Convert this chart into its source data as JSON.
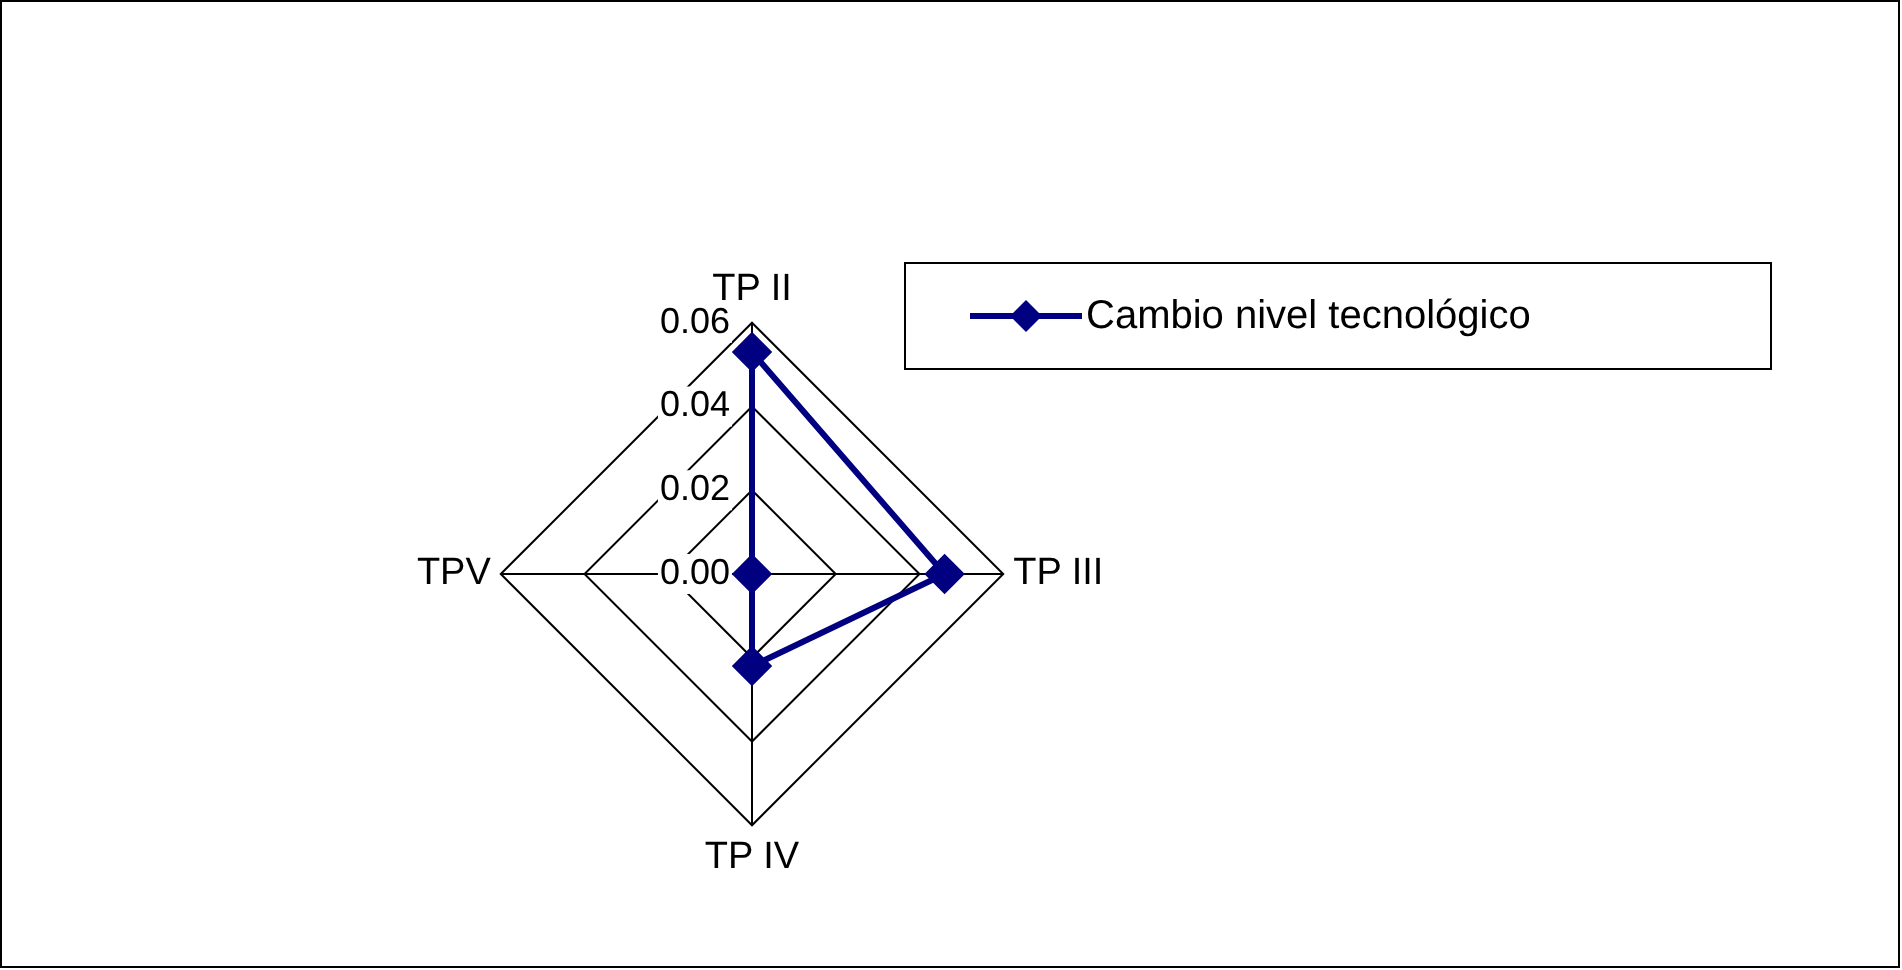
{
  "chart_data": {
    "type": "radar",
    "categories": [
      "TP II",
      "TP III",
      "TP IV",
      "TPV"
    ],
    "series": [
      {
        "name": "Cambio nivel tecnológico",
        "color": "#000080",
        "values": [
          0.053,
          0.046,
          0.022,
          0
        ]
      }
    ],
    "ylim": [
      0,
      0.06
    ],
    "yticks": [
      {
        "value": 0,
        "label": "0.00"
      },
      {
        "value": 0.02,
        "label": "0.02"
      },
      {
        "value": 0.04,
        "label": "0.04"
      },
      {
        "value": 0.06,
        "label": "0.06"
      }
    ],
    "grid": true,
    "legend": "top right",
    "marker": "diamond",
    "line_style": "solid"
  }
}
